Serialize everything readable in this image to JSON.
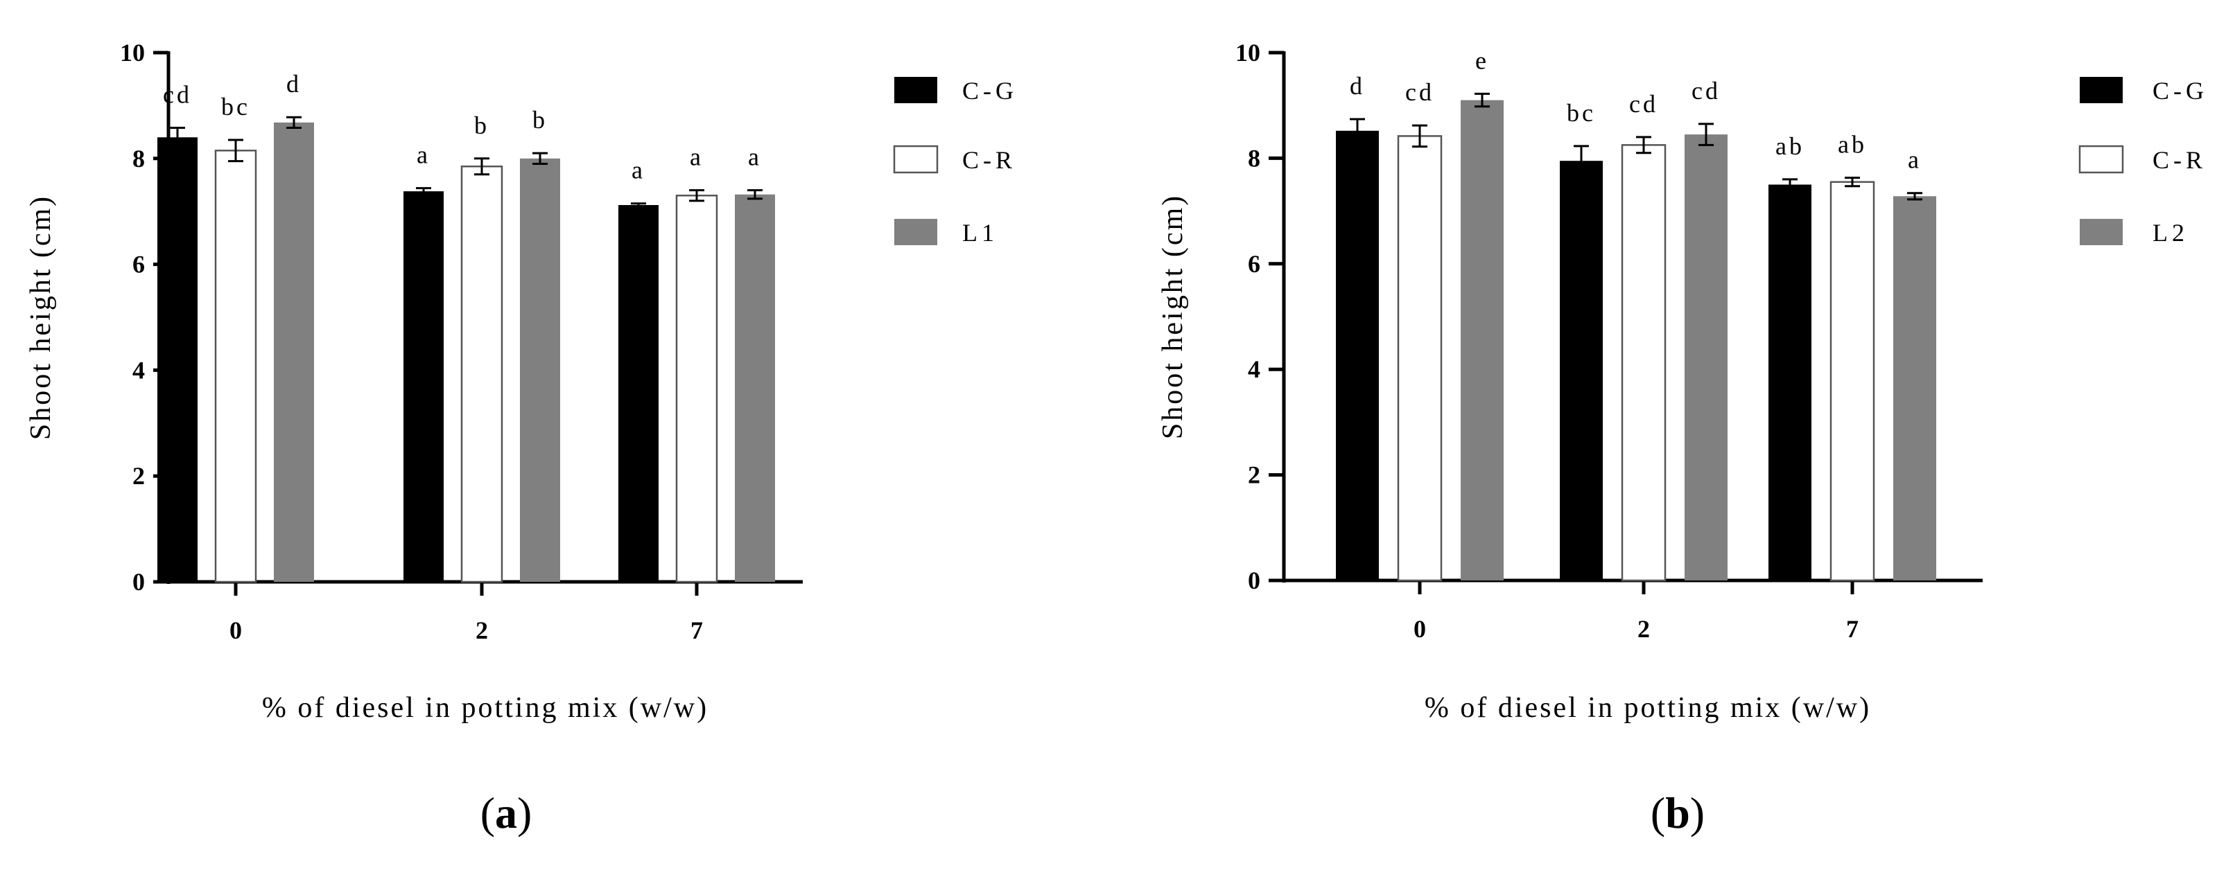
{
  "chart_data": [
    {
      "type": "bar",
      "panel_label": {
        "open": "(",
        "letter": "a",
        "close": ")"
      },
      "ylabel": "Shoot height (cm)",
      "xlabel": "% of diesel in potting mix (w/w)",
      "ylim": [
        0,
        10
      ],
      "yticks": [
        "0",
        "2",
        "4",
        "6",
        "8",
        "10"
      ],
      "categories": [
        "0",
        "2",
        "7"
      ],
      "legend_position": "right",
      "series": [
        {
          "name": "C-G",
          "color": "#000000",
          "values": [
            8.4,
            7.38,
            7.12
          ],
          "errors": [
            0.18,
            0.06,
            0.03
          ],
          "letters": [
            "cd",
            "a",
            "a"
          ]
        },
        {
          "name": "C-R",
          "color": "#ffffff",
          "values": [
            8.15,
            7.85,
            7.3
          ],
          "errors": [
            0.2,
            0.15,
            0.1
          ],
          "letters": [
            "bc",
            "b",
            "a"
          ]
        },
        {
          "name": "L1",
          "color": "#808080",
          "values": [
            8.68,
            8.0,
            7.32
          ],
          "errors": [
            0.1,
            0.1,
            0.08
          ],
          "letters": [
            "d",
            "b",
            "a"
          ]
        }
      ]
    },
    {
      "type": "bar",
      "panel_label": {
        "open": "(",
        "letter": "b",
        "close": ")"
      },
      "ylabel": "Shoot height (cm)",
      "xlabel": "% of diesel in potting mix (w/w)",
      "ylim": [
        0,
        10
      ],
      "yticks": [
        "0",
        "2",
        "4",
        "6",
        "8",
        "10"
      ],
      "categories": [
        "0",
        "2",
        "7"
      ],
      "legend_position": "right",
      "series": [
        {
          "name": "C-G",
          "color": "#000000",
          "values": [
            8.52,
            7.95,
            7.5
          ],
          "errors": [
            0.22,
            0.28,
            0.1
          ],
          "letters": [
            "d",
            "bc",
            "ab"
          ]
        },
        {
          "name": "C-R",
          "color": "#ffffff",
          "values": [
            8.42,
            8.25,
            7.55
          ],
          "errors": [
            0.2,
            0.15,
            0.08
          ],
          "letters": [
            "cd",
            "cd",
            "ab"
          ]
        },
        {
          "name": "L2",
          "color": "#808080",
          "values": [
            9.1,
            8.45,
            7.28
          ],
          "errors": [
            0.12,
            0.2,
            0.06
          ],
          "letters": [
            "e",
            "cd",
            "a"
          ]
        }
      ]
    }
  ]
}
